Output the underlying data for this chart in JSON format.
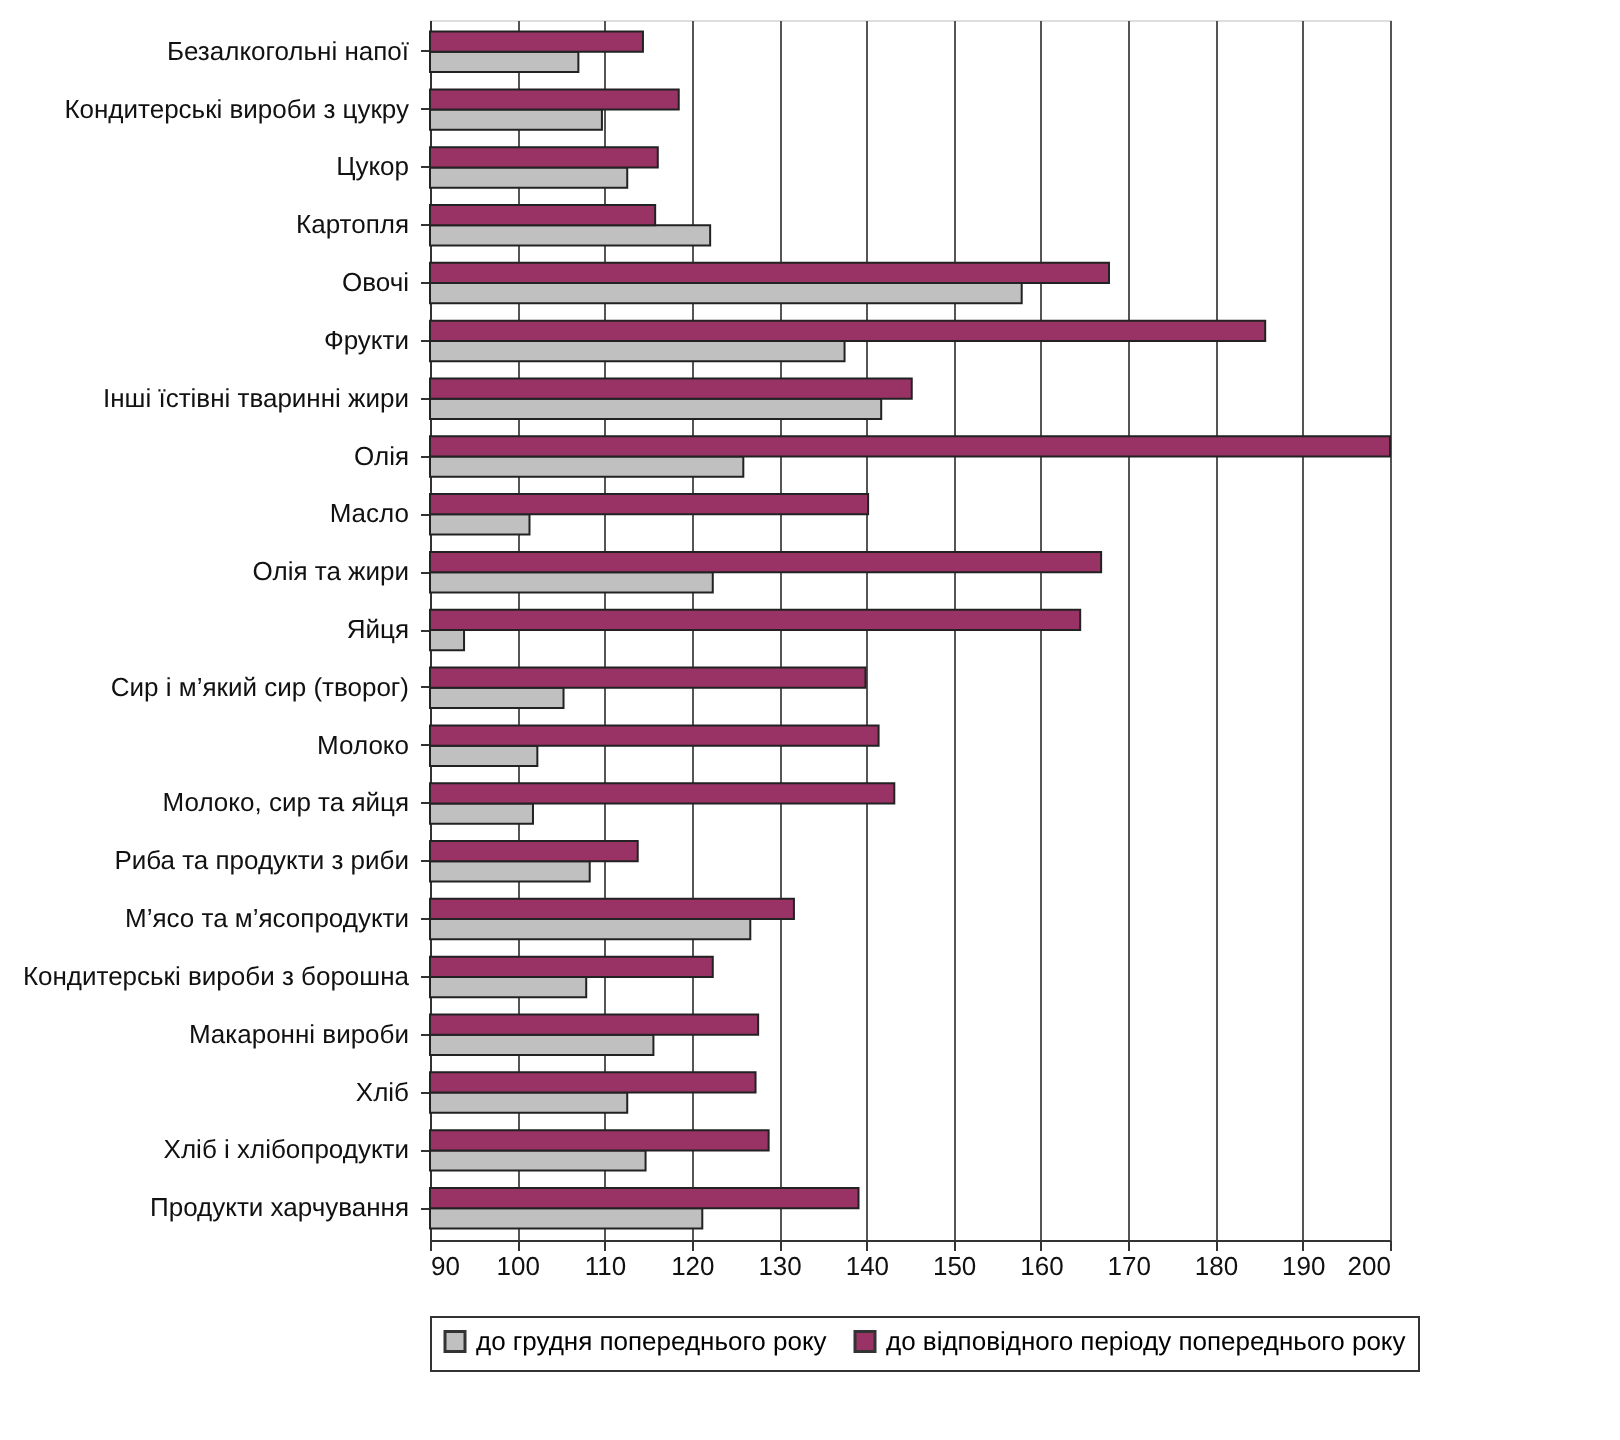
{
  "chart_data": {
    "type": "bar",
    "orientation": "horizontal",
    "categories": [
      "Безалкогольні напої",
      "Кондитерські вироби з цукру",
      "Цукор",
      "Картопля",
      "Овочі",
      "Фрукти",
      "Інші їстівні тваринні жири",
      "Олія",
      "Масло",
      "Олія та жири",
      "Яйця",
      "Сир і м’який сир (творог)",
      "Молоко",
      "Молоко, сир та яйця",
      "Риба та продукти з риби",
      "М’ясо та м’ясопродукти",
      "Кондитерські вироби з борошна",
      "Макаронні вироби",
      "Хліб",
      "Хліб і хлібопродукти",
      "Продукти харчування"
    ],
    "series": [
      {
        "name": "до грудня попереднього року",
        "color": "#c0c0c0",
        "values": [
          107.0,
          109.7,
          112.6,
          122.1,
          157.8,
          137.5,
          141.7,
          125.9,
          101.4,
          122.4,
          93.9,
          105.3,
          102.3,
          101.8,
          108.3,
          126.7,
          107.9,
          115.6,
          112.6,
          114.7,
          121.2
        ]
      },
      {
        "name": "до відповідного періоду попереднього року",
        "color": "#993366",
        "values": [
          114.4,
          118.5,
          116.1,
          115.8,
          167.8,
          185.7,
          145.2,
          200,
          140.2,
          166.9,
          164.5,
          139.9,
          141.4,
          143.2,
          113.8,
          131.7,
          122.4,
          127.6,
          127.3,
          128.8,
          139.1
        ]
      }
    ],
    "xlim": [
      90,
      200
    ],
    "xticks": [
      90,
      100,
      110,
      120,
      130,
      140,
      150,
      160,
      170,
      180,
      190,
      200
    ],
    "grid": "x",
    "legend": "bottom"
  }
}
